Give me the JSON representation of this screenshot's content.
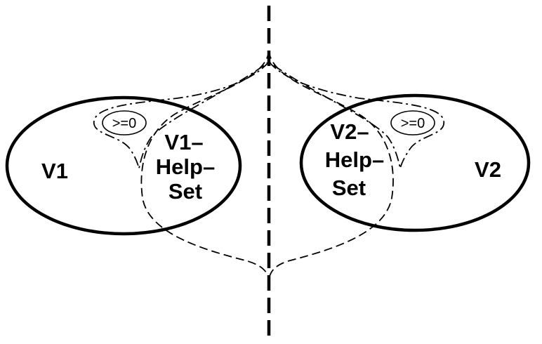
{
  "diagram": {
    "left_set_label": "V1",
    "right_set_label": "V2",
    "left_help_set_lines": [
      "V1–",
      "Help–",
      "Set"
    ],
    "right_help_set_lines": [
      "V2–",
      "Help–",
      "Set"
    ],
    "left_region_label": ">=0",
    "right_region_label": ">=0"
  },
  "colors": {
    "stroke": "#000000",
    "background": "#ffffff"
  }
}
